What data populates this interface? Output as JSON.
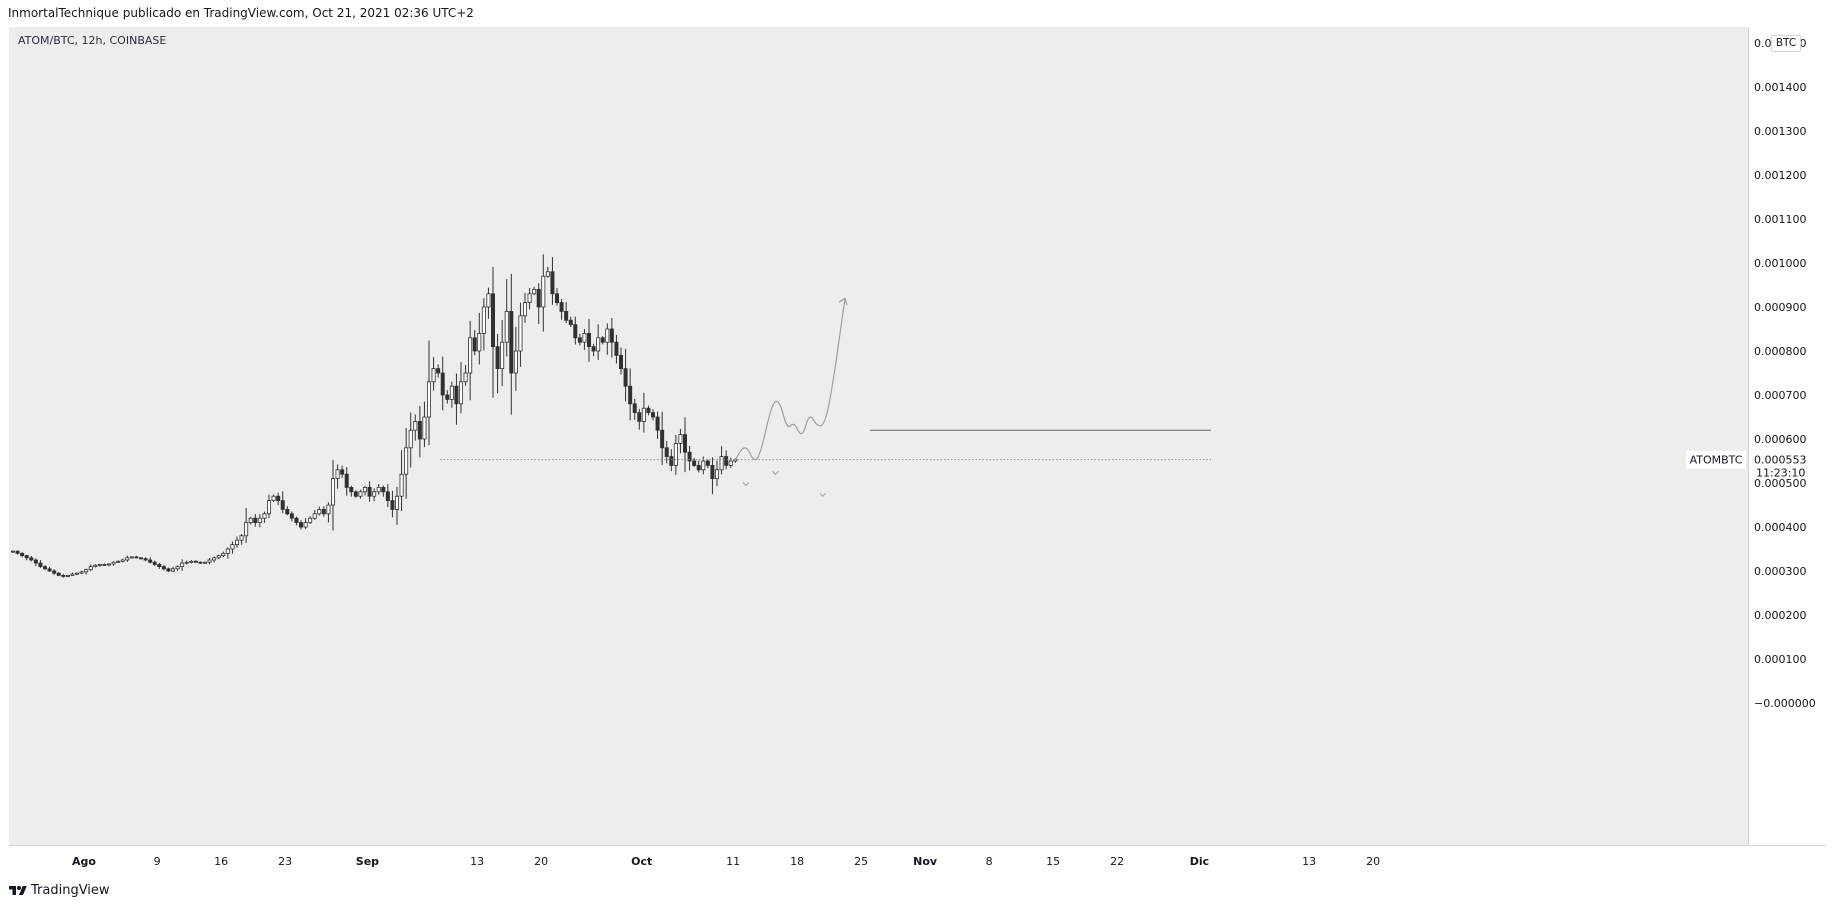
{
  "header": {
    "published_line": "InmortalTechnique publicado en TradingView.com, Oct 21, 2021 02:36 UTC+2"
  },
  "symbol_info": "ATOM/BTC, 12h, COINBASE",
  "currency_label": "BTC",
  "footer": {
    "brand": "TradingView"
  },
  "colors": {
    "panel_bg": "#ededed",
    "candle": "#2f3132",
    "drawing": "#9b9ea3",
    "level_line": "#6a6d73",
    "last_price_bg": "#ffffff"
  },
  "chart_data": {
    "type": "candlestick",
    "title": "ATOM/BTC, 12h, COINBASE",
    "y_unit": "BTC",
    "ylim": [
      -5e-05,
      0.00155
    ],
    "y_ticks": [
      0.0015,
      0.0014,
      0.0013,
      0.0012,
      0.0011,
      0.001,
      0.0009,
      0.0008,
      0.0007,
      0.0006,
      0.0005,
      0.0004,
      0.0003,
      0.0002,
      0.0001,
      0.0
    ],
    "y_tick_labels": [
      "0.001500",
      "0.001400",
      "0.001300",
      "0.001200",
      "0.001100",
      "0.001000",
      "0.000900",
      "0.000800",
      "0.000700",
      "0.000600",
      "0.000500",
      "0.000400",
      "0.000300",
      "0.000200",
      "0.000100",
      "−0.000000"
    ],
    "x_ticks": [
      {
        "label": "Ago",
        "day": 0,
        "bold": true
      },
      {
        "label": "9",
        "day": 8
      },
      {
        "label": "16",
        "day": 15
      },
      {
        "label": "23",
        "day": 22
      },
      {
        "label": "Sep",
        "day": 31,
        "bold": true
      },
      {
        "label": "13",
        "day": 43
      },
      {
        "label": "20",
        "day": 50
      },
      {
        "label": "Oct",
        "day": 61,
        "bold": true
      },
      {
        "label": "11",
        "day": 71
      },
      {
        "label": "18",
        "day": 78
      },
      {
        "label": "25",
        "day": 85
      },
      {
        "label": "Nov",
        "day": 92,
        "bold": true
      },
      {
        "label": "8",
        "day": 99
      },
      {
        "label": "15",
        "day": 106
      },
      {
        "label": "22",
        "day": 113
      },
      {
        "label": "Dic",
        "day": 122,
        "bold": true
      },
      {
        "label": "13",
        "day": 134
      },
      {
        "label": "20",
        "day": 141
      }
    ],
    "candles_close_path": [
      0.000345,
      0.00034,
      0.000335,
      0.00033,
      0.000325,
      0.000318,
      0.00031,
      0.000305,
      0.0003,
      0.000295,
      0.00029,
      0.000288,
      0.00029,
      0.000293,
      0.000295,
      0.000298,
      0.000303,
      0.00031,
      0.000313,
      0.000315,
      0.000314,
      0.000316,
      0.00032,
      0.000322,
      0.000325,
      0.00033,
      0.000332,
      0.00033,
      0.000328,
      0.000325,
      0.00032,
      0.000315,
      0.00031,
      0.000305,
      0.0003,
      0.000305,
      0.00031,
      0.000318,
      0.00032,
      0.000322,
      0.00032,
      0.000318,
      0.00032,
      0.000325,
      0.00033,
      0.000335,
      0.00034,
      0.00035,
      0.00036,
      0.00037,
      0.00038,
      0.00041,
      0.00042,
      0.00041,
      0.00042,
      0.00043,
      0.00046,
      0.00047,
      0.00046,
      0.00044,
      0.00043,
      0.00042,
      0.00041,
      0.0004,
      0.00041,
      0.00042,
      0.00043,
      0.00044,
      0.00043,
      0.00045,
      0.00051,
      0.00053,
      0.00052,
      0.00049,
      0.00048,
      0.00047,
      0.00048,
      0.00049,
      0.00047,
      0.00048,
      0.00049,
      0.00048,
      0.00046,
      0.00044,
      0.00047,
      0.00052,
      0.00058,
      0.00062,
      0.00064,
      0.0006,
      0.00065,
      0.00073,
      0.00076,
      0.00075,
      0.0007,
      0.00069,
      0.00072,
      0.00068,
      0.00073,
      0.00075,
      0.00083,
      0.0008,
      0.00084,
      0.0009,
      0.00093,
      0.00081,
      0.00076,
      0.00082,
      0.00089,
      0.00075,
      0.0008,
      0.00088,
      0.00091,
      0.00093,
      0.00094,
      0.0009,
      0.00097,
      0.00098,
      0.00093,
      0.00091,
      0.00089,
      0.00087,
      0.00086,
      0.00083,
      0.00082,
      0.00084,
      0.00081,
      0.0008,
      0.00083,
      0.00082,
      0.00085,
      0.00082,
      0.00079,
      0.00076,
      0.00072,
      0.00068,
      0.00066,
      0.00064,
      0.00067,
      0.00066,
      0.00065,
      0.00062,
      0.00058,
      0.00056,
      0.00054,
      0.00059,
      0.00061,
      0.00057,
      0.00055,
      0.00054,
      0.00053,
      0.00055,
      0.00054,
      0.00051,
      0.00053,
      0.00056,
      0.00054,
      0.00055,
      0.000553
    ],
    "horizontal_level": 0.00062,
    "dotted_level": 0.000553,
    "last_price": {
      "symbol": "ATOMBTC",
      "value": "0.000553",
      "countdown": "11:23:10"
    },
    "projection_path": [
      [
        84.5,
        0.000553
      ],
      [
        85.6,
        0.00059
      ],
      [
        86.6,
        0.000545
      ],
      [
        87.3,
        0.00057
      ],
      [
        88.5,
        0.00068
      ],
      [
        89.3,
        0.00069
      ],
      [
        90.2,
        0.00062
      ],
      [
        90.9,
        0.00064
      ],
      [
        91.8,
        0.0006
      ],
      [
        92.6,
        0.00066
      ],
      [
        93.4,
        0.00063
      ],
      [
        94.2,
        0.00063
      ],
      [
        95.0,
        0.0007
      ],
      [
        96.5,
        0.00092
      ]
    ],
    "low_markers": [
      72.4,
      80.8,
      88.9
    ]
  }
}
